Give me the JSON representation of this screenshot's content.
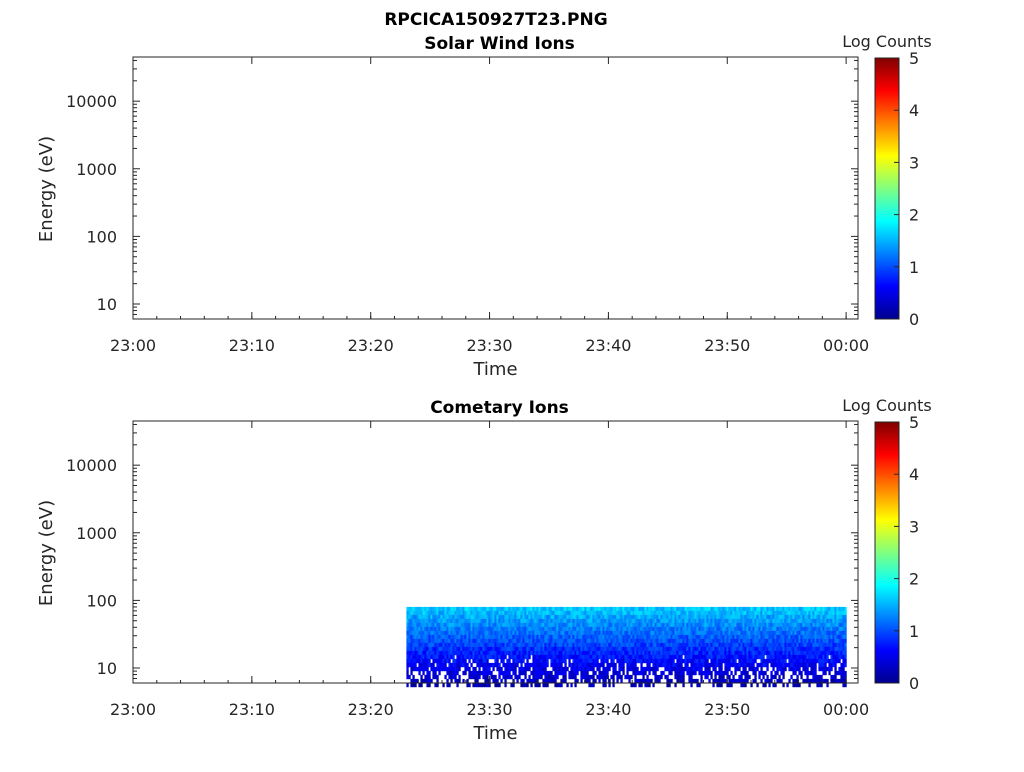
{
  "figure": {
    "title": "RPCICA150927T23.PNG"
  },
  "colorbar": {
    "label": "Log Counts",
    "ticks": [
      "0",
      "1",
      "2",
      "3",
      "4",
      "5"
    ],
    "colormap": [
      "#00008f",
      "#0000ff",
      "#0080ff",
      "#00ffff",
      "#80ff80",
      "#ffff00",
      "#ff8000",
      "#ff0000",
      "#800000"
    ]
  },
  "chart_data": [
    {
      "type": "heatmap",
      "title": "Solar Wind Ions",
      "xlabel": "Time",
      "ylabel": "Energy (eV)",
      "x_ticks": [
        "23:00",
        "23:10",
        "23:20",
        "23:30",
        "23:40",
        "23:50",
        "00:00"
      ],
      "y_ticks": [
        "10",
        "100",
        "1000",
        "10000"
      ],
      "y_scale": "log",
      "ylim": [
        6,
        45000
      ],
      "xlim": [
        "23:00",
        "00:01"
      ],
      "clim": [
        0,
        5
      ],
      "data_region": null
    },
    {
      "type": "heatmap",
      "title": "Cometary Ions",
      "xlabel": "Time",
      "ylabel": "Energy (eV)",
      "x_ticks": [
        "23:00",
        "23:10",
        "23:20",
        "23:30",
        "23:40",
        "23:50",
        "00:00"
      ],
      "y_ticks": [
        "10",
        "100",
        "1000",
        "10000"
      ],
      "y_scale": "log",
      "ylim": [
        6,
        45000
      ],
      "xlim": [
        "23:00",
        "00:01"
      ],
      "clim": [
        0,
        5
      ],
      "data_region": {
        "time_start": "23:23",
        "time_end": "00:00",
        "energy_min": 6,
        "energy_max": 80,
        "log_counts_top": 1.6,
        "log_counts_bottom": 0.2
      }
    }
  ]
}
